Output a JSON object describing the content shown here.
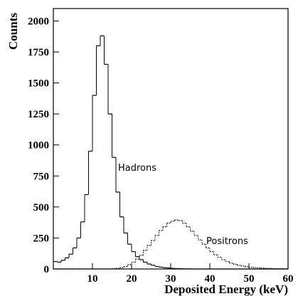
{
  "chart_data": {
    "type": "histogram",
    "xlabel": "Deposited Energy (keV)",
    "ylabel": "Counts",
    "bins": [
      0,
      1,
      2,
      3,
      4,
      5,
      6,
      7,
      8,
      9,
      10,
      11,
      12,
      13,
      14,
      15,
      16,
      17,
      18,
      19,
      20,
      21,
      22,
      23,
      24,
      25,
      26,
      27,
      28,
      29,
      30,
      31,
      32,
      33,
      34,
      35,
      36,
      37,
      38,
      39,
      40,
      41,
      42,
      43,
      44,
      45,
      46,
      47,
      48,
      49,
      50,
      51,
      52,
      53,
      54,
      55,
      56,
      57,
      58,
      59,
      60
    ],
    "series": [
      {
        "name": "Hadrons",
        "color": "#000000",
        "style": "solid",
        "values": [
          60,
          55,
          70,
          90,
          120,
          170,
          250,
          380,
          600,
          950,
          1400,
          1800,
          1880,
          1650,
          1250,
          900,
          620,
          420,
          290,
          200,
          140,
          100,
          75,
          55,
          40,
          30,
          20,
          15,
          10,
          8,
          5,
          3,
          2,
          1,
          1,
          0,
          0,
          0,
          0,
          0,
          0,
          0,
          0,
          0,
          0,
          0,
          0,
          0,
          0,
          0,
          0,
          0,
          0,
          0,
          0,
          0,
          0,
          0,
          0,
          0
        ]
      },
      {
        "name": "Positrons",
        "color": "#000000",
        "style": "dotted",
        "values": [
          0,
          0,
          0,
          0,
          0,
          0,
          0,
          0,
          0,
          0,
          0,
          0,
          0,
          0,
          0,
          2,
          5,
          10,
          20,
          35,
          55,
          80,
          110,
          150,
          190,
          230,
          270,
          310,
          340,
          370,
          385,
          395,
          390,
          370,
          340,
          305,
          270,
          235,
          200,
          170,
          140,
          115,
          95,
          75,
          60,
          48,
          38,
          30,
          24,
          18,
          14,
          11,
          9,
          7,
          5,
          4,
          3,
          2,
          2,
          1
        ]
      }
    ],
    "xlim": [
      0,
      60
    ],
    "xticks": [
      10,
      20,
      30,
      40,
      50,
      60
    ],
    "ylim": [
      0,
      2100
    ],
    "yticks": [
      0,
      250,
      500,
      750,
      1000,
      1250,
      1500,
      1750,
      2000
    ]
  }
}
